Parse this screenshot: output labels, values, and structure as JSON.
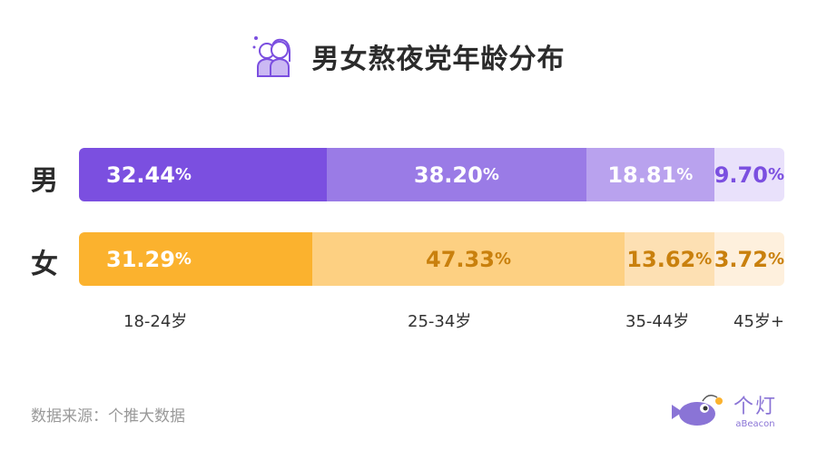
{
  "title": "男女熬夜党年龄分布",
  "chart_data": {
    "type": "bar",
    "stacked": true,
    "orientation": "horizontal",
    "title": "男女熬夜党年龄分布",
    "categories": [
      "18-24岁",
      "25-34岁",
      "35-44岁",
      "45岁+"
    ],
    "series": [
      {
        "name": "男",
        "values": [
          32.44,
          38.2,
          18.81,
          9.7
        ],
        "labels": [
          "32.44",
          "38.20",
          "18.81",
          "9.70"
        ],
        "colors": [
          "#7b4fe0",
          "#9a7be6",
          "#b9a2ee",
          "#e9e1fb"
        ],
        "text_colors": [
          "#ffffff",
          "#ffffff",
          "#ffffff",
          "#7b4fe0"
        ]
      },
      {
        "name": "女",
        "values": [
          31.29,
          47.33,
          13.62,
          3.72
        ],
        "labels": [
          "31.29",
          "47.33",
          "13.62",
          "3.72"
        ],
        "colors": [
          "#fbb22e",
          "#fdd082",
          "#fde0b3",
          "#fef0dd"
        ],
        "text_colors": [
          "#ffffff",
          "#c9800d",
          "#c9800d",
          "#c9800d"
        ]
      }
    ],
    "unit": "%"
  },
  "source": "数据来源：个推大数据",
  "logo": {
    "cn": "个灯",
    "en": "aBeacon"
  }
}
